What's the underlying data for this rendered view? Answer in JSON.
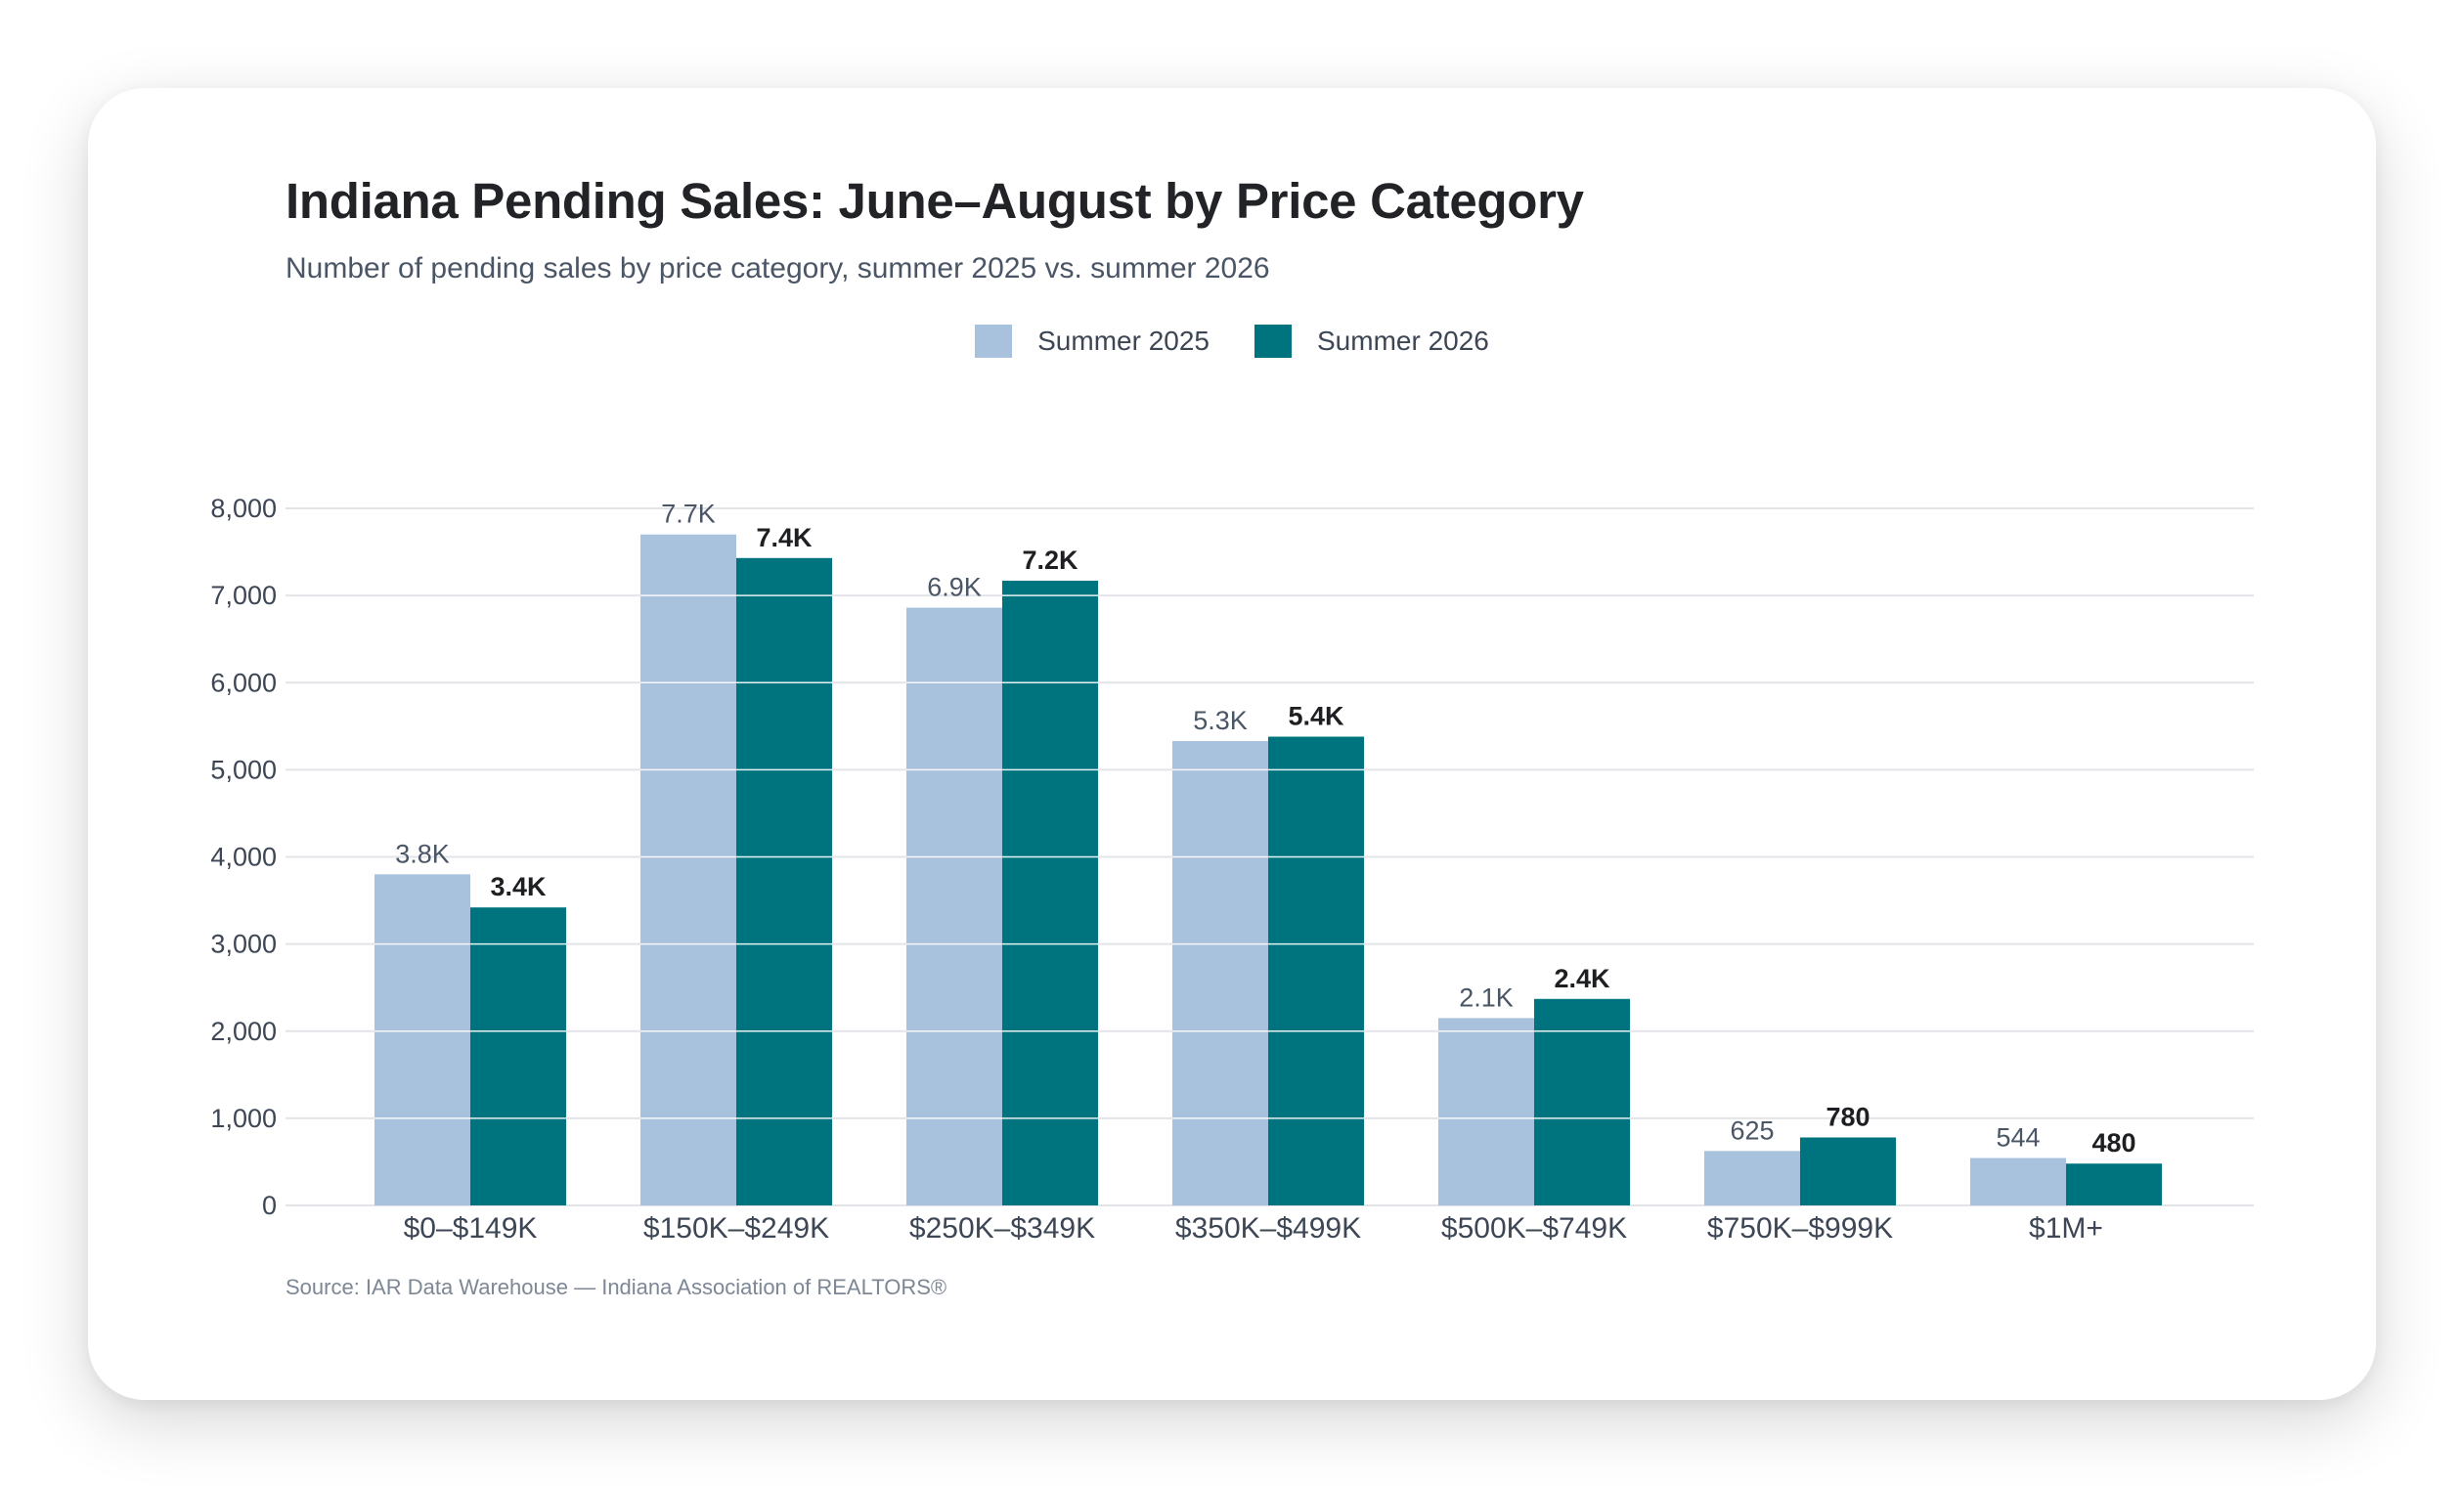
{
  "colors": {
    "summer_2025": "#a8c1dc",
    "summer_2026": "#00747e",
    "gridline": "#e2e4e8",
    "white_gridline": "#ffffff"
  },
  "chart_data": {
    "type": "bar",
    "title": "Indiana Pending Sales: June–August by Price Category",
    "subtitle": "Number of pending sales by price category, summer 2025 vs. summer 2026",
    "source": "Source: IAR Data Warehouse — Indiana Association of REALTORS®",
    "categories": [
      "$0–$149K",
      "$150K–$249K",
      "$250K–$349K",
      "$350K–$499K",
      "$500K–$749K",
      "$750K–$999K",
      "$1M+"
    ],
    "series": [
      {
        "name": "Summer 2025",
        "values": [
          3800,
          7700,
          6860,
          5330,
          2150,
          625,
          544
        ],
        "labels": [
          "3.8K",
          "7.7K",
          "6.9K",
          "5.3K",
          "2.1K",
          "625",
          "544"
        ]
      },
      {
        "name": "Summer 2026",
        "values": [
          3420,
          7430,
          7170,
          5380,
          2370,
          780,
          480
        ],
        "labels": [
          "3.4K",
          "7.4K",
          "7.2K",
          "5.4K",
          "2.4K",
          "780",
          "480"
        ]
      }
    ],
    "ylim": [
      0,
      8000
    ],
    "yticks": [
      0,
      1000,
      2000,
      3000,
      4000,
      5000,
      6000,
      7000,
      8000
    ],
    "ytick_labels": [
      "0",
      "1,000",
      "2,000",
      "3,000",
      "4,000",
      "5,000",
      "6,000",
      "7,000",
      "8,000"
    ],
    "grid": true,
    "legend_position": "top-center"
  }
}
